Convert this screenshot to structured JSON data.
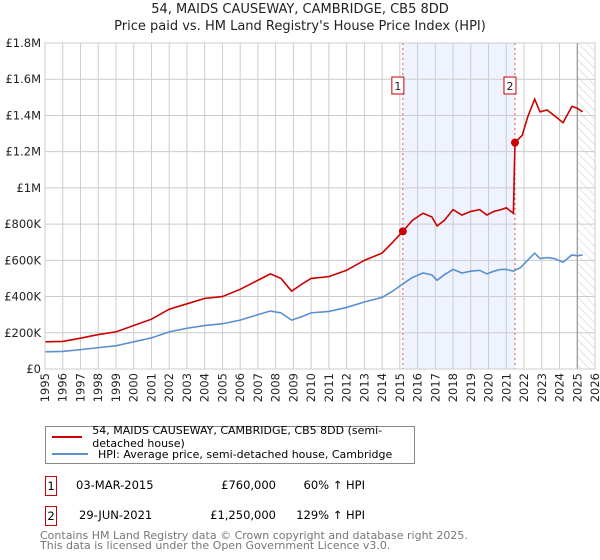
{
  "chart_data": {
    "type": "line",
    "title": "54, MAIDS CAUSEWAY, CAMBRIDGE, CB5 8DD",
    "subtitle": "Price paid vs. HM Land Registry's House Price Index (HPI)",
    "xlim": [
      1995,
      2026
    ],
    "ylim": [
      0,
      1800000
    ],
    "x_ticks": [
      "1995",
      "1996",
      "1997",
      "1998",
      "1999",
      "2000",
      "2001",
      "2002",
      "2003",
      "2004",
      "2005",
      "2006",
      "2007",
      "2008",
      "2009",
      "2010",
      "2011",
      "2012",
      "2013",
      "2014",
      "2015",
      "2016",
      "2017",
      "2018",
      "2019",
      "2020",
      "2021",
      "2022",
      "2023",
      "2024",
      "2025",
      "2026"
    ],
    "y_ticks": [
      {
        "v": 0,
        "l": "£0"
      },
      {
        "v": 200000,
        "l": "£200K"
      },
      {
        "v": 400000,
        "l": "£400K"
      },
      {
        "v": 600000,
        "l": "£600K"
      },
      {
        "v": 800000,
        "l": "£800K"
      },
      {
        "v": 1000000,
        "l": "£1M"
      },
      {
        "v": 1200000,
        "l": "£1.2M"
      },
      {
        "v": 1400000,
        "l": "£1.4M"
      },
      {
        "v": 1600000,
        "l": "£1.6M"
      },
      {
        "v": 1800000,
        "l": "£1.8M"
      }
    ],
    "grid": true,
    "shaded_range": [
      2015.17,
      2021.49
    ],
    "hatched_from": 2025.0,
    "series": [
      {
        "name": "54, MAIDS CAUSEWAY, CAMBRIDGE, CB5 8DD (semi-detached house)",
        "color": "#cc0000",
        "points": [
          [
            1995,
            150000
          ],
          [
            1996,
            152000
          ],
          [
            1997,
            170000
          ],
          [
            1998,
            190000
          ],
          [
            1999,
            205000
          ],
          [
            2000,
            240000
          ],
          [
            2001,
            275000
          ],
          [
            2002,
            330000
          ],
          [
            2003,
            360000
          ],
          [
            2004,
            390000
          ],
          [
            2005,
            400000
          ],
          [
            2006,
            440000
          ],
          [
            2007,
            490000
          ],
          [
            2007.7,
            525000
          ],
          [
            2008.3,
            500000
          ],
          [
            2008.9,
            430000
          ],
          [
            2009.5,
            470000
          ],
          [
            2010,
            500000
          ],
          [
            2011,
            510000
          ],
          [
            2012,
            545000
          ],
          [
            2013,
            600000
          ],
          [
            2014,
            640000
          ],
          [
            2014.6,
            700000
          ],
          [
            2015.17,
            760000
          ],
          [
            2015.7,
            820000
          ],
          [
            2016.3,
            860000
          ],
          [
            2016.8,
            840000
          ],
          [
            2017.1,
            790000
          ],
          [
            2017.5,
            820000
          ],
          [
            2018,
            880000
          ],
          [
            2018.5,
            850000
          ],
          [
            2019,
            870000
          ],
          [
            2019.5,
            880000
          ],
          [
            2019.9,
            850000
          ],
          [
            2020.3,
            870000
          ],
          [
            2020.7,
            880000
          ],
          [
            2021.0,
            890000
          ],
          [
            2021.4,
            860000
          ],
          [
            2021.49,
            1250000
          ],
          [
            2021.9,
            1290000
          ],
          [
            2022.2,
            1390000
          ],
          [
            2022.6,
            1490000
          ],
          [
            2022.9,
            1420000
          ],
          [
            2023.3,
            1430000
          ],
          [
            2023.7,
            1400000
          ],
          [
            2024.2,
            1360000
          ],
          [
            2024.7,
            1450000
          ],
          [
            2025.0,
            1440000
          ],
          [
            2025.3,
            1420000
          ]
        ]
      },
      {
        "name": "HPI: Average price, semi-detached house, Cambridge",
        "color": "#5b8fd0",
        "points": [
          [
            1995,
            95000
          ],
          [
            1996,
            97000
          ],
          [
            1997,
            107000
          ],
          [
            1998,
            118000
          ],
          [
            1999,
            128000
          ],
          [
            2000,
            150000
          ],
          [
            2001,
            172000
          ],
          [
            2002,
            205000
          ],
          [
            2003,
            225000
          ],
          [
            2004,
            240000
          ],
          [
            2005,
            250000
          ],
          [
            2006,
            270000
          ],
          [
            2007,
            300000
          ],
          [
            2007.7,
            320000
          ],
          [
            2008.3,
            310000
          ],
          [
            2008.9,
            270000
          ],
          [
            2009.5,
            290000
          ],
          [
            2010,
            310000
          ],
          [
            2011,
            318000
          ],
          [
            2012,
            340000
          ],
          [
            2013,
            370000
          ],
          [
            2014,
            395000
          ],
          [
            2014.6,
            430000
          ],
          [
            2015.17,
            470000
          ],
          [
            2015.7,
            505000
          ],
          [
            2016.3,
            530000
          ],
          [
            2016.8,
            520000
          ],
          [
            2017.1,
            490000
          ],
          [
            2017.5,
            520000
          ],
          [
            2018,
            550000
          ],
          [
            2018.5,
            530000
          ],
          [
            2019,
            540000
          ],
          [
            2019.5,
            545000
          ],
          [
            2019.9,
            525000
          ],
          [
            2020.3,
            540000
          ],
          [
            2020.7,
            550000
          ],
          [
            2021.0,
            550000
          ],
          [
            2021.4,
            540000
          ],
          [
            2021.8,
            560000
          ],
          [
            2022.2,
            600000
          ],
          [
            2022.6,
            640000
          ],
          [
            2022.9,
            610000
          ],
          [
            2023.3,
            615000
          ],
          [
            2023.7,
            610000
          ],
          [
            2024.2,
            590000
          ],
          [
            2024.7,
            630000
          ],
          [
            2025.0,
            625000
          ],
          [
            2025.3,
            630000
          ]
        ]
      }
    ],
    "sales": [
      {
        "label": "1",
        "x": 2015.17,
        "y": 760000
      },
      {
        "label": "2",
        "x": 2021.49,
        "y": 1250000
      }
    ]
  },
  "legend": {
    "red": "54, MAIDS CAUSEWAY, CAMBRIDGE, CB5 8DD (semi-detached house)",
    "blue": "HPI: Average price, semi-detached house, Cambridge"
  },
  "table": [
    {
      "n": "1",
      "date": "03-MAR-2015",
      "price": "£760,000",
      "hpi": "60% ↑ HPI"
    },
    {
      "n": "2",
      "date": "29-JUN-2021",
      "price": "£1,250,000",
      "hpi": "129% ↑ HPI"
    }
  ],
  "footer": {
    "l1": "Contains HM Land Registry data © Crown copyright and database right 2025.",
    "l2": "This data is licensed under the Open Government Licence v3.0."
  }
}
